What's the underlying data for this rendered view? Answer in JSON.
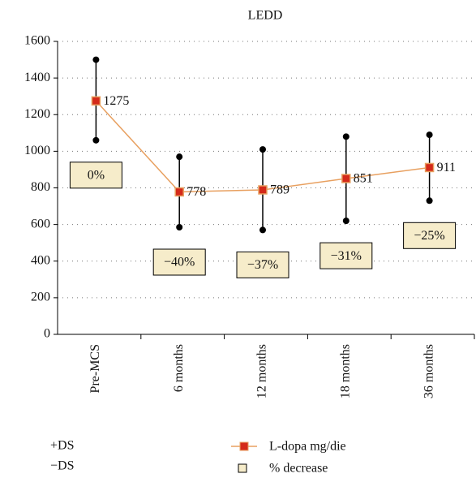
{
  "chart_data": {
    "type": "line",
    "title": "LEDD",
    "categories": [
      "Pre-MCS",
      "6 months",
      "12 months",
      "18 months",
      "36 months"
    ],
    "series": [
      {
        "name": "+DS",
        "color": "#000000",
        "values": [
          1500,
          970,
          1010,
          1080,
          1090
        ]
      },
      {
        "name": "−DS",
        "color": "#000000",
        "values": [
          1060,
          585,
          570,
          620,
          730
        ]
      },
      {
        "name": "L-dopa mg/die",
        "color": "#e8a060",
        "marker_color": "#d42a1a",
        "values": [
          1275,
          778,
          789,
          851,
          911
        ]
      },
      {
        "name": "% decrease",
        "color": "#f6ecca",
        "values": [
          0,
          -40,
          -37,
          -31,
          -25
        ],
        "value_labels": [
          "0%",
          "−40%",
          "−37%",
          "−31%",
          "−25%"
        ]
      }
    ],
    "ylim": [
      0,
      1600
    ],
    "yticks": [
      0,
      200,
      400,
      600,
      800,
      1000,
      1200,
      1400,
      1600
    ],
    "grid": true
  }
}
